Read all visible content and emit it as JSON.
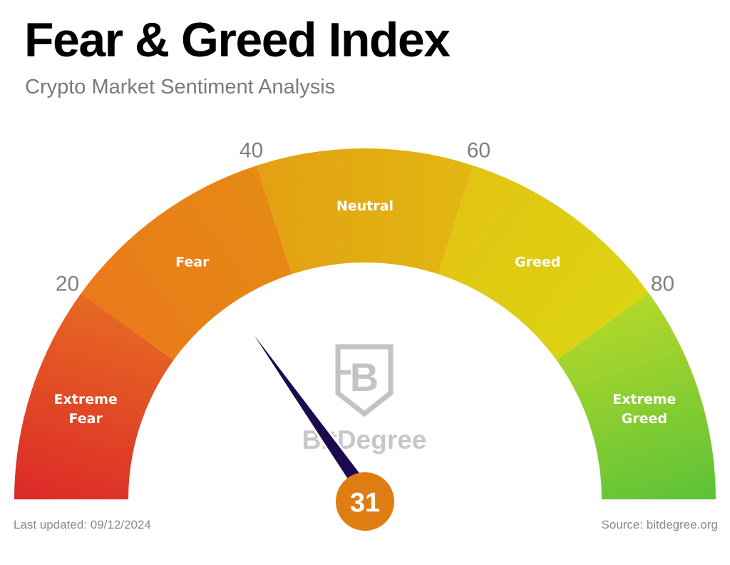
{
  "title": "Fear & Greed Index",
  "subtitle": "Crypto Market Sentiment Analysis",
  "chart_data": {
    "type": "gauge",
    "range": [
      0,
      100
    ],
    "value": 31,
    "value_label": "31",
    "ticks": [
      {
        "value": 20,
        "label": "20"
      },
      {
        "value": 40,
        "label": "40"
      },
      {
        "value": 60,
        "label": "60"
      },
      {
        "value": 80,
        "label": "80"
      }
    ],
    "zones": [
      {
        "label": [
          "Extreme",
          "Fear"
        ],
        "from": 0,
        "to": 20,
        "color_start": "#dc2828",
        "color_end": "#e66a23"
      },
      {
        "label": [
          "Fear"
        ],
        "from": 20,
        "to": 40,
        "color_start": "#ea7a1a",
        "color_end": "#e68a14"
      },
      {
        "label": [
          "Neutral"
        ],
        "from": 40,
        "to": 60,
        "color_start": "#e3a012",
        "color_end": "#e2b812"
      },
      {
        "label": [
          "Greed"
        ],
        "from": 60,
        "to": 80,
        "color_start": "#e2c412",
        "color_end": "#dcd412"
      },
      {
        "label": [
          "Extreme",
          "Greed"
        ],
        "from": 80,
        "to": 100,
        "color_start": "#b4d82a",
        "color_end": "#5cc238"
      }
    ],
    "needle_color": "#1b0a4e",
    "value_badge_color": "#e07d12"
  },
  "watermark": {
    "brand_name": "BitDegree",
    "icon": "bitdegree-shield-logo"
  },
  "footer": {
    "last_updated": "Last updated: 09/12/2024",
    "source": "Source: bitdegree.org"
  }
}
